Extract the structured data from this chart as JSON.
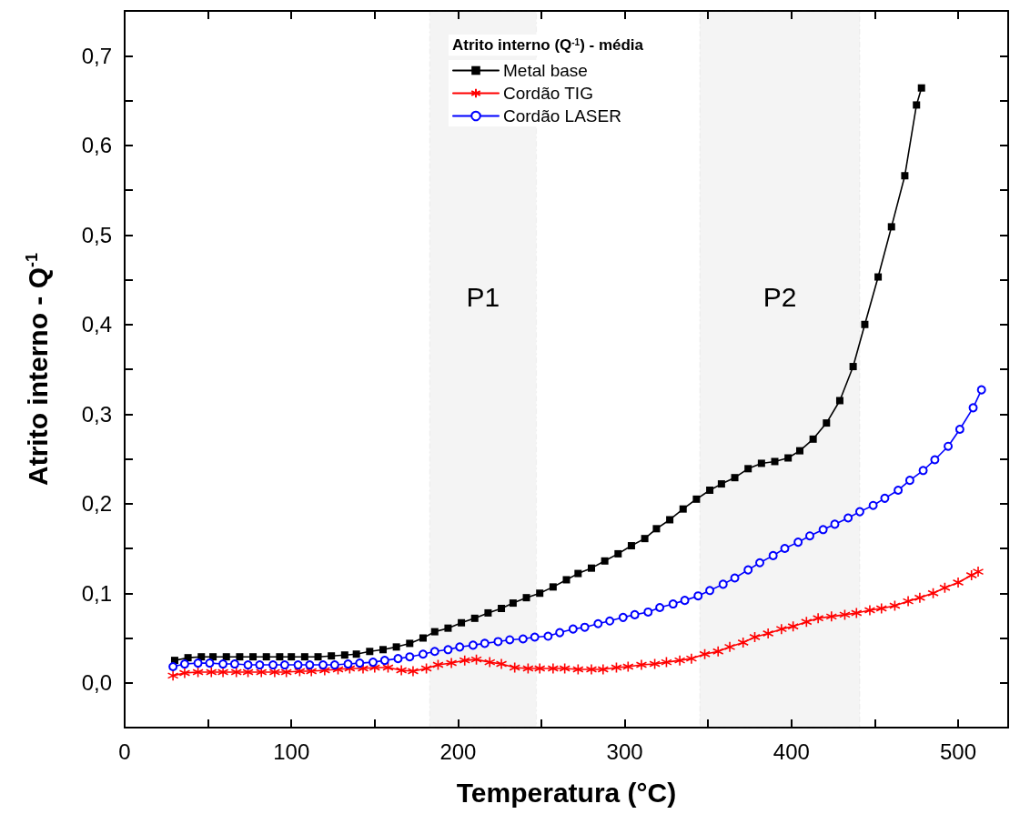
{
  "chart_data": {
    "type": "line",
    "xlabel": "Temperatura (°C)",
    "ylabel": "Atrito interno - Q$^{-1}$",
    "legend_title": "Atrito interno (Q$^{-1}$) - média",
    "legend": "top",
    "grid": false,
    "xlim": [
      0,
      530
    ],
    "ylim": [
      -0.05,
      0.75
    ],
    "xticks": [
      0,
      {
        "value": 50,
        "label": null
      },
      100,
      {
        "value": 150,
        "label": null
      },
      200,
      {
        "value": 250,
        "label": null
      },
      300,
      {
        "value": 350,
        "label": null
      },
      400,
      {
        "value": 450,
        "label": null
      },
      500
    ],
    "yticks": [
      {
        "value": 0,
        "label": "0,0"
      },
      {
        "value": 0.05,
        "label": null
      },
      {
        "value": 0.1,
        "label": "0,1"
      },
      {
        "value": 0.15,
        "label": null
      },
      {
        "value": 0.2,
        "label": "0,2"
      },
      {
        "value": 0.25,
        "label": null
      },
      {
        "value": 0.3,
        "label": "0,3"
      },
      {
        "value": 0.35,
        "label": null
      },
      {
        "value": 0.4,
        "label": "0,4"
      },
      {
        "value": 0.45,
        "label": null
      },
      {
        "value": 0.5,
        "label": "0,5"
      },
      {
        "value": 0.55,
        "label": null
      },
      {
        "value": 0.6,
        "label": "0,6"
      },
      {
        "value": 0.65,
        "label": null
      },
      {
        "value": 0.7,
        "label": "0,7"
      }
    ],
    "bands": [
      {
        "axis": "x",
        "from": 183,
        "to": 247,
        "label": "P1",
        "color": "#444444"
      },
      {
        "axis": "x",
        "from": 345,
        "to": 441,
        "label": "P2",
        "color": "#444444"
      }
    ],
    "series": [
      {
        "name": "Metal base",
        "color": "#000000",
        "marker": "square",
        "x": [
          30,
          38,
          46,
          53,
          61,
          69,
          77,
          85,
          93,
          100,
          108,
          116,
          124,
          132,
          139,
          147,
          155,
          163,
          171,
          179,
          186,
          194,
          202,
          210,
          218,
          226,
          233,
          241,
          249,
          257,
          265,
          272,
          280,
          288,
          296,
          304,
          312,
          319,
          327,
          335,
          343,
          351,
          358,
          366,
          374,
          382,
          390,
          398,
          405,
          413,
          421,
          429,
          437,
          444,
          452,
          460,
          468,
          475,
          478
        ],
        "values": [
          0.025,
          0.028,
          0.029,
          0.029,
          0.029,
          0.029,
          0.029,
          0.029,
          0.029,
          0.029,
          0.029,
          0.029,
          0.03,
          0.031,
          0.032,
          0.035,
          0.037,
          0.04,
          0.044,
          0.05,
          0.057,
          0.061,
          0.067,
          0.072,
          0.078,
          0.083,
          0.089,
          0.095,
          0.1,
          0.107,
          0.115,
          0.122,
          0.128,
          0.136,
          0.144,
          0.153,
          0.161,
          0.172,
          0.182,
          0.194,
          0.205,
          0.215,
          0.222,
          0.229,
          0.239,
          0.245,
          0.247,
          0.251,
          0.259,
          0.272,
          0.29,
          0.315,
          0.353,
          0.4,
          0.453,
          0.509,
          0.566,
          0.645,
          0.664
        ]
      },
      {
        "name": "Cordão TIG",
        "color": "#ff0000",
        "marker": "cross",
        "x": [
          29,
          36,
          44,
          52,
          59,
          67,
          74,
          82,
          90,
          97,
          105,
          112,
          120,
          128,
          135,
          143,
          150,
          158,
          166,
          173,
          181,
          188,
          196,
          204,
          211,
          219,
          226,
          234,
          242,
          249,
          257,
          264,
          272,
          280,
          287,
          295,
          302,
          310,
          318,
          325,
          333,
          340,
          348,
          356,
          363,
          371,
          378,
          386,
          394,
          401,
          409,
          416,
          424,
          432,
          439,
          447,
          454,
          462,
          470,
          477,
          485,
          492,
          500,
          508,
          512
        ],
        "values": [
          0.008,
          0.011,
          0.012,
          0.012,
          0.012,
          0.012,
          0.012,
          0.012,
          0.012,
          0.012,
          0.013,
          0.013,
          0.014,
          0.015,
          0.016,
          0.016,
          0.017,
          0.017,
          0.014,
          0.013,
          0.016,
          0.02,
          0.022,
          0.025,
          0.026,
          0.023,
          0.021,
          0.017,
          0.016,
          0.016,
          0.016,
          0.016,
          0.015,
          0.015,
          0.015,
          0.017,
          0.018,
          0.02,
          0.021,
          0.023,
          0.025,
          0.027,
          0.032,
          0.035,
          0.04,
          0.045,
          0.051,
          0.055,
          0.06,
          0.063,
          0.068,
          0.072,
          0.074,
          0.076,
          0.078,
          0.081,
          0.083,
          0.086,
          0.091,
          0.095,
          0.1,
          0.106,
          0.112,
          0.12,
          0.124
        ]
      },
      {
        "name": "Cordão LASER",
        "color": "#0000ff",
        "marker": "circle",
        "x": [
          29,
          36,
          44,
          51,
          59,
          66,
          74,
          81,
          89,
          96,
          104,
          111,
          119,
          126,
          134,
          141,
          149,
          156,
          164,
          171,
          179,
          186,
          194,
          201,
          209,
          216,
          224,
          231,
          239,
          246,
          254,
          261,
          269,
          276,
          284,
          291,
          299,
          306,
          314,
          321,
          329,
          336,
          344,
          351,
          359,
          366,
          374,
          381,
          389,
          396,
          404,
          411,
          419,
          426,
          434,
          441,
          449,
          456,
          464,
          471,
          479,
          486,
          494,
          501,
          509,
          514
        ],
        "values": [
          0.018,
          0.021,
          0.022,
          0.022,
          0.021,
          0.021,
          0.02,
          0.02,
          0.02,
          0.02,
          0.02,
          0.02,
          0.02,
          0.02,
          0.021,
          0.022,
          0.023,
          0.025,
          0.027,
          0.029,
          0.032,
          0.035,
          0.037,
          0.04,
          0.042,
          0.044,
          0.046,
          0.048,
          0.049,
          0.051,
          0.052,
          0.056,
          0.06,
          0.062,
          0.066,
          0.069,
          0.073,
          0.076,
          0.079,
          0.084,
          0.088,
          0.092,
          0.097,
          0.103,
          0.11,
          0.117,
          0.126,
          0.134,
          0.142,
          0.15,
          0.157,
          0.164,
          0.171,
          0.177,
          0.184,
          0.191,
          0.198,
          0.206,
          0.215,
          0.226,
          0.237,
          0.249,
          0.264,
          0.283,
          0.307,
          0.327
        ]
      }
    ]
  }
}
